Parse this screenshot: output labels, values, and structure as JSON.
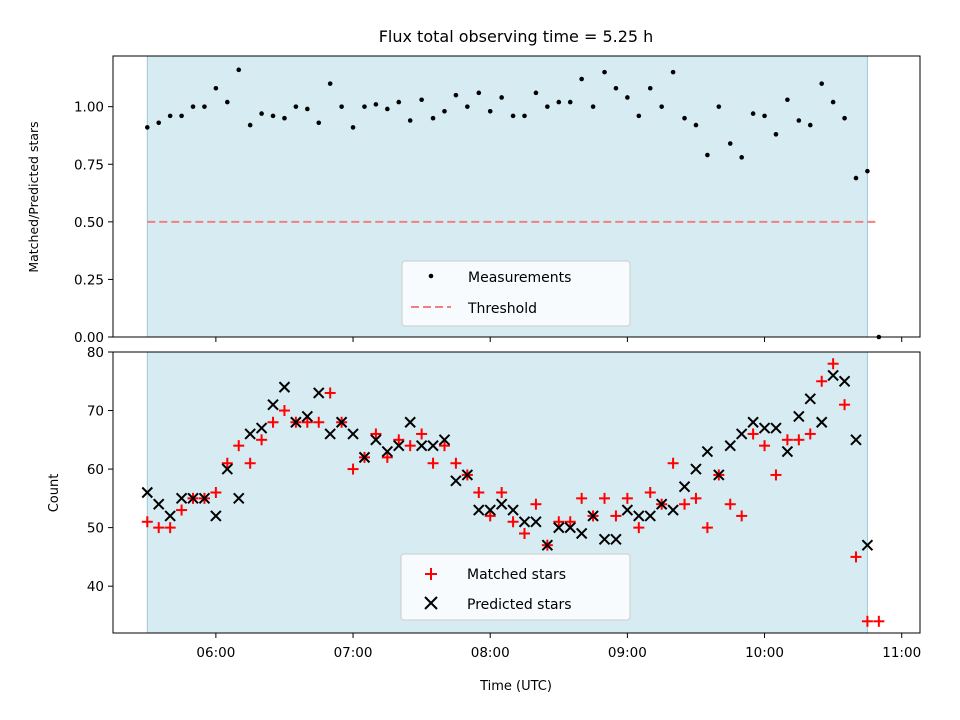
{
  "chart_data": [
    {
      "type": "scatter",
      "title": "Flux total observing time = 5.25 h",
      "xlabel": "",
      "ylabel": "Matched/Predicted stars",
      "xlim": [
        "05:15",
        "11:08"
      ],
      "ylim": [
        0.0,
        1.22
      ],
      "yticks": [
        "0.00",
        "0.25",
        "0.50",
        "0.75",
        "1.00"
      ],
      "ytick_values": [
        0.0,
        0.25,
        0.5,
        0.75,
        1.0
      ],
      "shaded_span": [
        "05:30",
        "10:45"
      ],
      "shade_color": "#add8e6",
      "threshold": {
        "name": "Threshold",
        "value": 0.5,
        "x_range": [
          "05:30",
          "10:50"
        ],
        "color": "#f08080"
      },
      "series": [
        {
          "name": "Measurements",
          "color": "#000000",
          "x": [
            "05:30",
            "05:35",
            "05:40",
            "05:45",
            "05:50",
            "05:55",
            "06:00",
            "06:05",
            "06:10",
            "06:15",
            "06:20",
            "06:25",
            "06:30",
            "06:35",
            "06:40",
            "06:45",
            "06:50",
            "06:55",
            "07:00",
            "07:05",
            "07:10",
            "07:15",
            "07:20",
            "07:25",
            "07:30",
            "07:35",
            "07:40",
            "07:45",
            "07:50",
            "07:55",
            "08:00",
            "08:05",
            "08:10",
            "08:15",
            "08:20",
            "08:25",
            "08:30",
            "08:35",
            "08:40",
            "08:45",
            "08:50",
            "08:55",
            "09:00",
            "09:05",
            "09:10",
            "09:15",
            "09:20",
            "09:25",
            "09:30",
            "09:35",
            "09:40",
            "09:45",
            "09:50",
            "09:55",
            "10:00",
            "10:05",
            "10:10",
            "10:15",
            "10:20",
            "10:25",
            "10:30",
            "10:35",
            "10:40",
            "10:45",
            "10:50"
          ],
          "y": [
            0.91,
            0.93,
            0.96,
            0.96,
            1.0,
            1.0,
            1.08,
            1.02,
            1.16,
            0.92,
            0.97,
            0.96,
            0.95,
            1.0,
            0.99,
            0.93,
            1.1,
            1.0,
            0.91,
            1.0,
            1.01,
            0.99,
            1.02,
            0.94,
            1.03,
            0.95,
            0.98,
            1.05,
            1.0,
            1.06,
            0.98,
            1.04,
            0.96,
            0.96,
            1.06,
            1.0,
            1.02,
            1.02,
            1.12,
            1.0,
            1.15,
            1.08,
            1.04,
            0.96,
            1.08,
            1.0,
            1.15,
            0.95,
            0.92,
            0.79,
            1.0,
            0.84,
            0.78,
            0.97,
            0.96,
            0.88,
            1.03,
            0.94,
            0.92,
            1.1,
            1.02,
            0.95,
            0.69,
            0.72,
            0.0
          ]
        }
      ],
      "legend": {
        "placement": "lower center",
        "entries": [
          "Measurements",
          "Threshold"
        ]
      }
    },
    {
      "type": "scatter",
      "title": "",
      "xlabel": "Time (UTC)",
      "ylabel": "Count",
      "xlim": [
        "05:15",
        "11:08"
      ],
      "ylim": [
        32,
        80
      ],
      "xticks": [
        "06:00",
        "07:00",
        "08:00",
        "09:00",
        "10:00",
        "11:00"
      ],
      "yticks": [
        "40",
        "50",
        "60",
        "70",
        "80"
      ],
      "ytick_values": [
        40,
        50,
        60,
        70,
        80
      ],
      "shaded_span": [
        "05:30",
        "10:45"
      ],
      "shade_color": "#add8e6",
      "series": [
        {
          "name": "Matched stars",
          "marker": "+",
          "color": "#ff0000",
          "x": [
            "05:30",
            "05:35",
            "05:40",
            "05:45",
            "05:50",
            "05:55",
            "06:00",
            "06:05",
            "06:10",
            "06:15",
            "06:20",
            "06:25",
            "06:30",
            "06:35",
            "06:40",
            "06:45",
            "06:50",
            "06:55",
            "07:00",
            "07:05",
            "07:10",
            "07:15",
            "07:20",
            "07:25",
            "07:30",
            "07:35",
            "07:40",
            "07:45",
            "07:50",
            "07:55",
            "08:00",
            "08:05",
            "08:10",
            "08:15",
            "08:20",
            "08:25",
            "08:30",
            "08:35",
            "08:40",
            "08:45",
            "08:50",
            "08:55",
            "09:00",
            "09:05",
            "09:10",
            "09:15",
            "09:20",
            "09:25",
            "09:30",
            "09:35",
            "09:40",
            "09:45",
            "09:50",
            "09:55",
            "10:00",
            "10:05",
            "10:10",
            "10:15",
            "10:20",
            "10:25",
            "10:30",
            "10:35",
            "10:40",
            "10:45",
            "10:50"
          ],
          "y": [
            51,
            50,
            50,
            53,
            55,
            55,
            56,
            61,
            64,
            61,
            65,
            68,
            70,
            68,
            68,
            68,
            73,
            68,
            60,
            62,
            66,
            62,
            65,
            64,
            66,
            61,
            64,
            61,
            59,
            56,
            52,
            56,
            51,
            49,
            54,
            47,
            51,
            51,
            55,
            52,
            55,
            52,
            55,
            50,
            56,
            54,
            61,
            54,
            55,
            50,
            59,
            54,
            52,
            66,
            64,
            59,
            65,
            65,
            66,
            75,
            78,
            71,
            45,
            34,
            34
          ]
        },
        {
          "name": "Predicted stars",
          "marker": "x",
          "color": "#000000",
          "x": [
            "05:30",
            "05:35",
            "05:40",
            "05:45",
            "05:50",
            "05:55",
            "06:00",
            "06:05",
            "06:10",
            "06:15",
            "06:20",
            "06:25",
            "06:30",
            "06:35",
            "06:40",
            "06:45",
            "06:50",
            "06:55",
            "07:00",
            "07:05",
            "07:10",
            "07:15",
            "07:20",
            "07:25",
            "07:30",
            "07:35",
            "07:40",
            "07:45",
            "07:50",
            "07:55",
            "08:00",
            "08:05",
            "08:10",
            "08:15",
            "08:20",
            "08:25",
            "08:30",
            "08:35",
            "08:40",
            "08:45",
            "08:50",
            "08:55",
            "09:00",
            "09:05",
            "09:10",
            "09:15",
            "09:20",
            "09:25",
            "09:30",
            "09:35",
            "09:40",
            "09:45",
            "09:50",
            "09:55",
            "10:00",
            "10:05",
            "10:10",
            "10:15",
            "10:20",
            "10:25",
            "10:30",
            "10:35",
            "10:40",
            "10:45"
          ],
          "y": [
            56,
            54,
            52,
            55,
            55,
            55,
            52,
            60,
            55,
            66,
            67,
            71,
            74,
            68,
            69,
            73,
            66,
            68,
            66,
            62,
            65,
            63,
            64,
            68,
            64,
            64,
            65,
            58,
            59,
            53,
            53,
            54,
            53,
            51,
            51,
            47,
            50,
            50,
            49,
            52,
            48,
            48,
            53,
            52,
            52,
            54,
            53,
            57,
            60,
            63,
            59,
            64,
            66,
            68,
            67,
            67,
            63,
            69,
            72,
            68,
            76,
            75,
            65,
            47
          ]
        }
      ],
      "legend": {
        "placement": "lower center",
        "entries": [
          "Matched stars",
          "Predicted stars"
        ]
      }
    }
  ]
}
